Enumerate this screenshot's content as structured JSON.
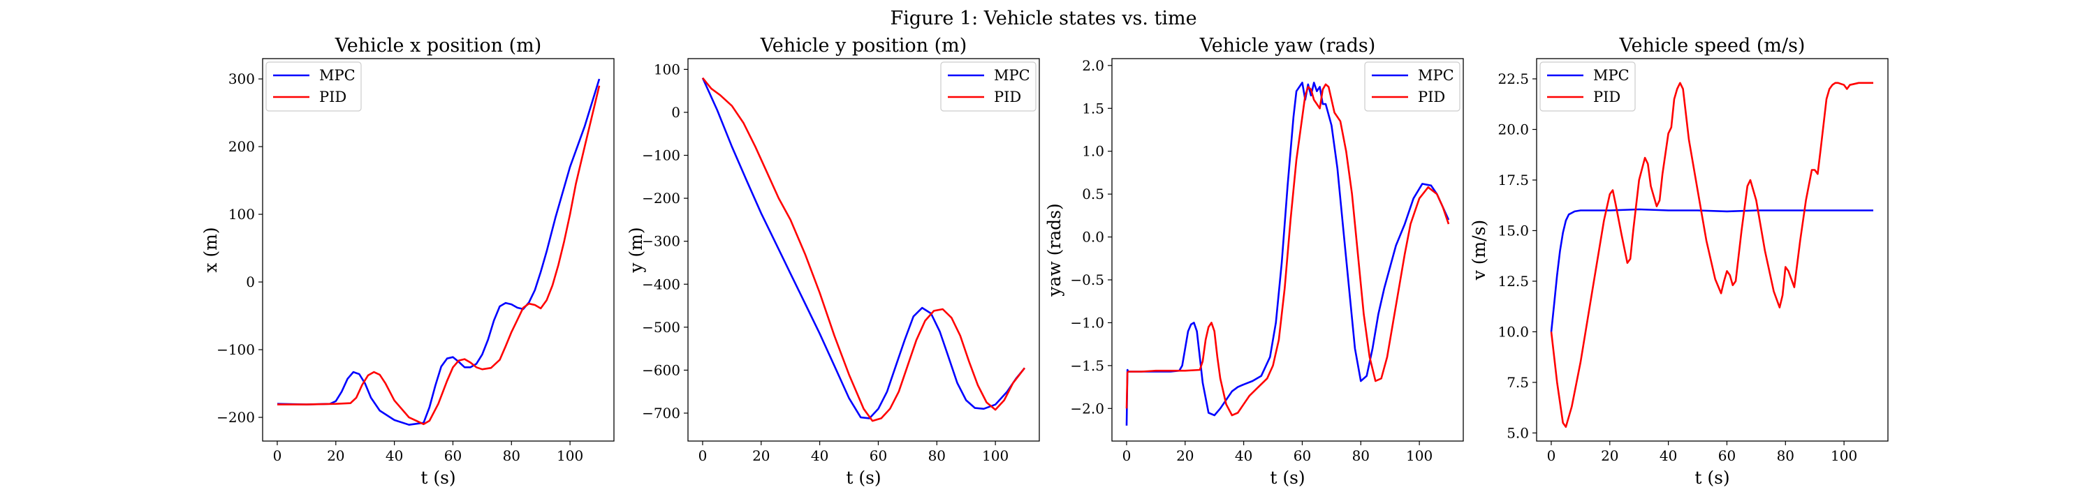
{
  "figure": {
    "title": "Figure 1: Vehicle states vs. time"
  },
  "colors": {
    "MPC": "#0000ff",
    "PID": "#ff0000"
  },
  "chart_data": [
    {
      "type": "line",
      "title": "Vehicle x position (m)",
      "xlabel": "t (s)",
      "ylabel": "x (m)",
      "xlim": [
        -5,
        115
      ],
      "ylim": [
        -235,
        330
      ],
      "xticks": [
        0,
        20,
        40,
        60,
        80,
        100
      ],
      "yticks": [
        -200,
        -100,
        0,
        100,
        200,
        300
      ],
      "legend": "upper-left",
      "series": [
        {
          "name": "MPC",
          "color": "#0000ff",
          "x": [
            0,
            10,
            18,
            20,
            22,
            24,
            26,
            28,
            30,
            32,
            35,
            40,
            45,
            50,
            52,
            54,
            56,
            58,
            60,
            62,
            64,
            66,
            68,
            70,
            72,
            74,
            76,
            78,
            80,
            82,
            84,
            86,
            88,
            90,
            92,
            95,
            100,
            105,
            110
          ],
          "y": [
            -180,
            -181,
            -180,
            -176,
            -162,
            -143,
            -133,
            -136,
            -150,
            -171,
            -190,
            -204,
            -211,
            -208,
            -185,
            -153,
            -125,
            -113,
            -111,
            -118,
            -126,
            -126,
            -121,
            -107,
            -85,
            -57,
            -36,
            -31,
            -33,
            -38,
            -40,
            -30,
            -12,
            15,
            45,
            95,
            170,
            230,
            300
          ]
        },
        {
          "name": "PID",
          "color": "#ff0000",
          "x": [
            0,
            10,
            20,
            25,
            27,
            29,
            31,
            33,
            35,
            37,
            40,
            45,
            50,
            52,
            55,
            58,
            60,
            62,
            64,
            66,
            68,
            70,
            73,
            76,
            78,
            80,
            82,
            84,
            86,
            88,
            90,
            92,
            94,
            96,
            98,
            100,
            102,
            105,
            110
          ],
          "y": [
            -181,
            -181,
            -180,
            -179,
            -171,
            -152,
            -138,
            -133,
            -137,
            -150,
            -175,
            -200,
            -210,
            -205,
            -180,
            -146,
            -126,
            -116,
            -114,
            -119,
            -126,
            -129,
            -127,
            -115,
            -95,
            -74,
            -56,
            -38,
            -32,
            -34,
            -39,
            -27,
            -5,
            25,
            60,
            100,
            145,
            200,
            290
          ]
        }
      ]
    },
    {
      "type": "line",
      "title": "Vehicle y position (m)",
      "xlabel": "t (s)",
      "ylabel": "y (m)",
      "xlim": [
        -5,
        115
      ],
      "ylim": [
        -765,
        125
      ],
      "xticks": [
        0,
        20,
        40,
        60,
        80,
        100
      ],
      "yticks": [
        -700,
        -600,
        -500,
        -400,
        -300,
        -200,
        -100,
        0,
        100
      ],
      "legend": "upper-right",
      "series": [
        {
          "name": "MPC",
          "color": "#0000ff",
          "x": [
            0,
            5,
            10,
            15,
            20,
            25,
            30,
            35,
            40,
            45,
            50,
            54,
            57,
            60,
            63,
            66,
            69,
            72,
            75,
            78,
            81,
            84,
            87,
            90,
            93,
            96,
            100,
            104,
            107,
            110
          ],
          "y": [
            80,
            5,
            -80,
            -158,
            -235,
            -305,
            -375,
            -445,
            -515,
            -590,
            -665,
            -710,
            -712,
            -690,
            -650,
            -590,
            -530,
            -475,
            -455,
            -468,
            -510,
            -570,
            -630,
            -670,
            -688,
            -690,
            -680,
            -650,
            -620,
            -595
          ]
        },
        {
          "name": "PID",
          "color": "#ff0000",
          "x": [
            0,
            3,
            6,
            10,
            14,
            18,
            22,
            26,
            30,
            35,
            40,
            45,
            50,
            55,
            58,
            61,
            64,
            67,
            70,
            73,
            76,
            79,
            82,
            85,
            88,
            91,
            94,
            97,
            100,
            103,
            106,
            110
          ],
          "y": [
            80,
            55,
            40,
            15,
            -25,
            -80,
            -140,
            -200,
            -250,
            -330,
            -420,
            -520,
            -610,
            -690,
            -718,
            -712,
            -690,
            -650,
            -590,
            -530,
            -485,
            -462,
            -458,
            -478,
            -520,
            -580,
            -635,
            -675,
            -692,
            -670,
            -630,
            -595
          ]
        }
      ]
    },
    {
      "type": "line",
      "title": "Vehicle yaw (rads)",
      "xlabel": "t (s)",
      "ylabel": "yaw (rads)",
      "xlim": [
        -5,
        115
      ],
      "ylim": [
        -2.38,
        2.08
      ],
      "xticks": [
        0,
        20,
        40,
        60,
        80,
        100
      ],
      "yticks": [
        -2.0,
        -1.5,
        -1.0,
        -0.5,
        0.0,
        0.5,
        1.0,
        1.5,
        2.0
      ],
      "legend": "upper-right",
      "series": [
        {
          "name": "MPC",
          "color": "#0000ff",
          "x": [
            0,
            0.3,
            0.6,
            5,
            10,
            15,
            18,
            19,
            20,
            21,
            22,
            23,
            24,
            25,
            26,
            28,
            30,
            32,
            34,
            36,
            38,
            40,
            43,
            46,
            49,
            51,
            53,
            55,
            57,
            58,
            59,
            60,
            61,
            62,
            63,
            64,
            65,
            66,
            67,
            68,
            70,
            72,
            74,
            76,
            78,
            80,
            82,
            84,
            86,
            88,
            90,
            92,
            95,
            98,
            101,
            104,
            106,
            108,
            110
          ],
          "y": [
            -2.2,
            -1.55,
            -1.57,
            -1.57,
            -1.57,
            -1.57,
            -1.56,
            -1.5,
            -1.3,
            -1.1,
            -1.02,
            -1.0,
            -1.1,
            -1.4,
            -1.7,
            -2.05,
            -2.08,
            -2.0,
            -1.9,
            -1.8,
            -1.75,
            -1.72,
            -1.68,
            -1.62,
            -1.4,
            -1.0,
            -0.3,
            0.6,
            1.4,
            1.7,
            1.75,
            1.8,
            1.6,
            1.78,
            1.65,
            1.8,
            1.7,
            1.75,
            1.55,
            1.55,
            1.3,
            0.8,
            0.1,
            -0.6,
            -1.3,
            -1.68,
            -1.62,
            -1.3,
            -0.9,
            -0.6,
            -0.35,
            -0.1,
            0.15,
            0.45,
            0.62,
            0.6,
            0.5,
            0.35,
            0.2
          ]
        },
        {
          "name": "PID",
          "color": "#ff0000",
          "x": [
            0,
            0.3,
            0.6,
            5,
            10,
            15,
            20,
            25,
            26,
            27,
            28,
            29,
            30,
            31,
            32,
            34,
            36,
            38,
            40,
            42,
            45,
            48,
            50,
            52,
            54,
            56,
            58,
            60,
            61,
            62,
            63,
            64,
            65,
            66,
            67,
            68,
            69,
            70,
            71,
            73,
            75,
            77,
            79,
            81,
            83,
            85,
            87,
            89,
            91,
            93,
            95,
            97,
            100,
            103,
            106,
            108,
            110
          ],
          "y": [
            -2.0,
            -1.58,
            -1.57,
            -1.57,
            -1.56,
            -1.56,
            -1.56,
            -1.55,
            -1.45,
            -1.2,
            -1.05,
            -1.0,
            -1.1,
            -1.4,
            -1.65,
            -1.95,
            -2.08,
            -2.05,
            -1.95,
            -1.85,
            -1.75,
            -1.65,
            -1.5,
            -1.2,
            -0.6,
            0.2,
            0.9,
            1.4,
            1.65,
            1.75,
            1.72,
            1.6,
            1.55,
            1.5,
            1.72,
            1.78,
            1.75,
            1.6,
            1.45,
            1.35,
            1.0,
            0.5,
            -0.2,
            -0.9,
            -1.4,
            -1.68,
            -1.65,
            -1.4,
            -1.0,
            -0.6,
            -0.2,
            0.15,
            0.45,
            0.58,
            0.5,
            0.35,
            0.15
          ]
        }
      ]
    },
    {
      "type": "line",
      "title": "Vehicle speed (m/s)",
      "xlabel": "t (s)",
      "ylabel": "v (m/s)",
      "xlim": [
        -5,
        115
      ],
      "ylim": [
        4.6,
        23.5
      ],
      "xticks": [
        0,
        20,
        40,
        60,
        80,
        100
      ],
      "yticks": [
        5.0,
        7.5,
        10.0,
        12.5,
        15.0,
        17.5,
        20.0,
        22.5
      ],
      "legend": "upper-left",
      "series": [
        {
          "name": "MPC",
          "color": "#0000ff",
          "x": [
            0,
            1,
            2,
            3,
            4,
            5,
            6,
            8,
            10,
            15,
            20,
            30,
            40,
            50,
            60,
            70,
            80,
            90,
            100,
            110
          ],
          "y": [
            10.0,
            11.4,
            12.8,
            14.0,
            14.9,
            15.5,
            15.8,
            15.95,
            16.0,
            16.0,
            16.0,
            16.05,
            16.0,
            16.0,
            15.95,
            16.0,
            16.0,
            16.0,
            16.0,
            16.0
          ]
        },
        {
          "name": "PID",
          "color": "#ff0000",
          "x": [
            0,
            2,
            4,
            5,
            7,
            10,
            14,
            18,
            20,
            21,
            22,
            24,
            26,
            27,
            28,
            30,
            32,
            33,
            34,
            36,
            37,
            38,
            40,
            41,
            42,
            43,
            44,
            45,
            47,
            50,
            53,
            56,
            58,
            59,
            60,
            61,
            62,
            63,
            65,
            67,
            68,
            70,
            73,
            76,
            78,
            79,
            80,
            81,
            83,
            85,
            87,
            89,
            90,
            91,
            92,
            94,
            95,
            96,
            97,
            98,
            100,
            101,
            102,
            105,
            110
          ],
          "y": [
            10.0,
            7.5,
            5.5,
            5.3,
            6.3,
            8.5,
            12.0,
            15.5,
            16.8,
            17.0,
            16.3,
            14.8,
            13.4,
            13.6,
            15.0,
            17.5,
            18.6,
            18.3,
            17.2,
            16.2,
            16.5,
            17.8,
            19.8,
            20.1,
            21.5,
            22.0,
            22.3,
            22.0,
            19.5,
            17.0,
            14.5,
            12.6,
            11.9,
            12.5,
            13.0,
            12.8,
            12.3,
            12.5,
            15.0,
            17.2,
            17.5,
            16.5,
            14.0,
            12.0,
            11.2,
            11.8,
            13.2,
            13.0,
            12.2,
            14.5,
            16.5,
            18.0,
            18.0,
            17.8,
            19.0,
            21.5,
            22.0,
            22.2,
            22.3,
            22.3,
            22.2,
            22.0,
            22.2,
            22.3,
            22.3
          ]
        }
      ]
    }
  ]
}
